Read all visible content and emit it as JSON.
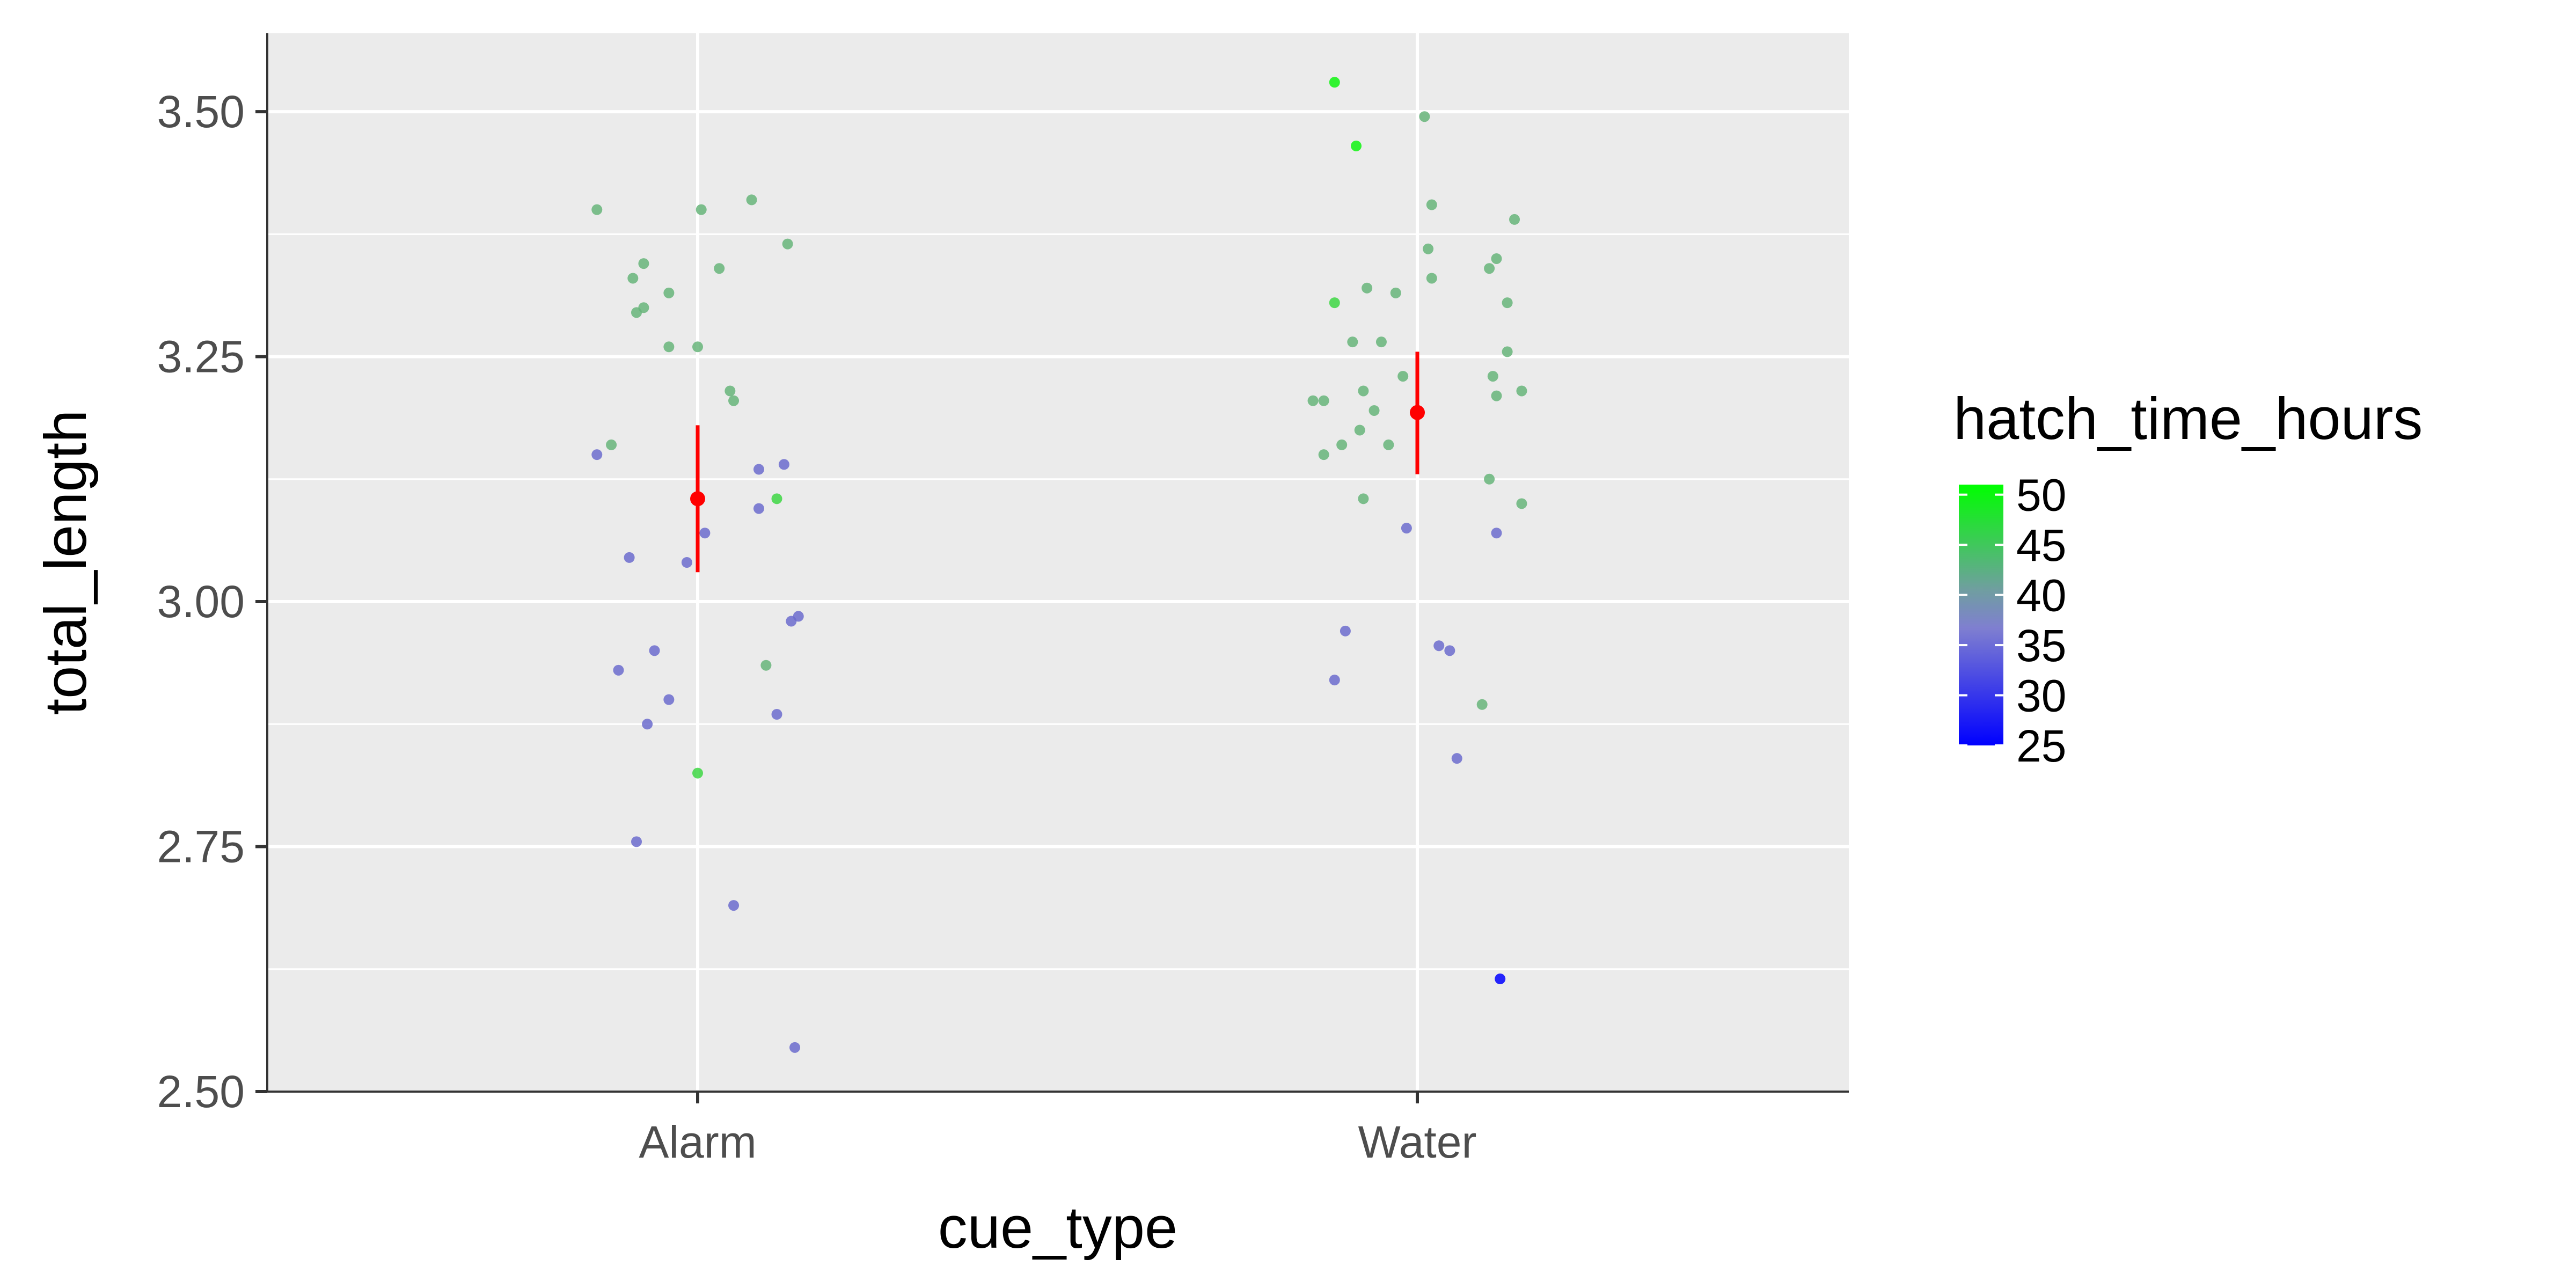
{
  "chart_data": {
    "type": "scatter",
    "title": "",
    "xlabel": "cue_type",
    "ylabel": "total_length",
    "categories": [
      "Alarm",
      "Water"
    ],
    "ylim": [
      2.5,
      3.58
    ],
    "yticks": [
      2.5,
      2.75,
      3.0,
      3.25,
      3.5
    ],
    "ytick_labels": [
      "2.50",
      "2.75",
      "3.00",
      "3.25",
      "3.50"
    ],
    "grid": true,
    "background": "#ebebeb",
    "legend": {
      "title": "hatch_time_hours",
      "position": "right",
      "type": "colorbar",
      "min": 25,
      "max": 51,
      "ticks": [
        25,
        30,
        35,
        40,
        45,
        50
      ],
      "tick_labels": [
        "25",
        "30",
        "35",
        "40",
        "45",
        "50"
      ],
      "low_color": "#0000ff",
      "high_color": "#00ff00"
    },
    "summary_color": "#ff0000",
    "summary": [
      {
        "category": "Alarm",
        "mean": 3.105,
        "lower": 3.03,
        "upper": 3.18
      },
      {
        "category": "Water",
        "mean": 3.193,
        "lower": 3.13,
        "upper": 3.255
      }
    ],
    "points": [
      {
        "category": "Alarm",
        "x_jitter": -0.28,
        "y": 3.4,
        "hatch_time_hours": 43
      },
      {
        "category": "Alarm",
        "x_jitter": -0.28,
        "y": 3.15,
        "hatch_time_hours": 32
      },
      {
        "category": "Alarm",
        "x_jitter": -0.24,
        "y": 3.16,
        "hatch_time_hours": 43
      },
      {
        "category": "Alarm",
        "x_jitter": -0.19,
        "y": 3.045,
        "hatch_time_hours": 32
      },
      {
        "category": "Alarm",
        "x_jitter": -0.18,
        "y": 3.33,
        "hatch_time_hours": 43
      },
      {
        "category": "Alarm",
        "x_jitter": -0.22,
        "y": 2.93,
        "hatch_time_hours": 32
      },
      {
        "category": "Alarm",
        "x_jitter": -0.17,
        "y": 3.295,
        "hatch_time_hours": 43
      },
      {
        "category": "Alarm",
        "x_jitter": -0.17,
        "y": 2.755,
        "hatch_time_hours": 32
      },
      {
        "category": "Alarm",
        "x_jitter": -0.15,
        "y": 3.345,
        "hatch_time_hours": 43
      },
      {
        "category": "Alarm",
        "x_jitter": -0.15,
        "y": 3.3,
        "hatch_time_hours": 43
      },
      {
        "category": "Alarm",
        "x_jitter": -0.14,
        "y": 2.875,
        "hatch_time_hours": 32
      },
      {
        "category": "Alarm",
        "x_jitter": -0.12,
        "y": 2.95,
        "hatch_time_hours": 32
      },
      {
        "category": "Alarm",
        "x_jitter": -0.08,
        "y": 3.315,
        "hatch_time_hours": 43
      },
      {
        "category": "Alarm",
        "x_jitter": -0.08,
        "y": 3.26,
        "hatch_time_hours": 43
      },
      {
        "category": "Alarm",
        "x_jitter": -0.08,
        "y": 2.9,
        "hatch_time_hours": 32
      },
      {
        "category": "Alarm",
        "x_jitter": -0.03,
        "y": 3.04,
        "hatch_time_hours": 32
      },
      {
        "category": "Alarm",
        "x_jitter": 0.0,
        "y": 3.26,
        "hatch_time_hours": 43
      },
      {
        "category": "Alarm",
        "x_jitter": 0.0,
        "y": 2.825,
        "hatch_time_hours": 47
      },
      {
        "category": "Alarm",
        "x_jitter": 0.01,
        "y": 3.4,
        "hatch_time_hours": 43
      },
      {
        "category": "Alarm",
        "x_jitter": 0.02,
        "y": 3.07,
        "hatch_time_hours": 32
      },
      {
        "category": "Alarm",
        "x_jitter": 0.06,
        "y": 3.34,
        "hatch_time_hours": 43
      },
      {
        "category": "Alarm",
        "x_jitter": 0.09,
        "y": 3.215,
        "hatch_time_hours": 43
      },
      {
        "category": "Alarm",
        "x_jitter": 0.1,
        "y": 3.205,
        "hatch_time_hours": 43
      },
      {
        "category": "Alarm",
        "x_jitter": 0.1,
        "y": 2.69,
        "hatch_time_hours": 32
      },
      {
        "category": "Alarm",
        "x_jitter": 0.15,
        "y": 3.41,
        "hatch_time_hours": 43
      },
      {
        "category": "Alarm",
        "x_jitter": 0.17,
        "y": 3.135,
        "hatch_time_hours": 32
      },
      {
        "category": "Alarm",
        "x_jitter": 0.17,
        "y": 3.095,
        "hatch_time_hours": 32
      },
      {
        "category": "Alarm",
        "x_jitter": 0.19,
        "y": 2.935,
        "hatch_time_hours": 43
      },
      {
        "category": "Alarm",
        "x_jitter": 0.22,
        "y": 3.105,
        "hatch_time_hours": 47
      },
      {
        "category": "Alarm",
        "x_jitter": 0.22,
        "y": 2.885,
        "hatch_time_hours": 32
      },
      {
        "category": "Alarm",
        "x_jitter": 0.24,
        "y": 3.14,
        "hatch_time_hours": 32
      },
      {
        "category": "Alarm",
        "x_jitter": 0.25,
        "y": 3.365,
        "hatch_time_hours": 43
      },
      {
        "category": "Alarm",
        "x_jitter": 0.26,
        "y": 2.98,
        "hatch_time_hours": 32
      },
      {
        "category": "Alarm",
        "x_jitter": 0.27,
        "y": 2.545,
        "hatch_time_hours": 32
      },
      {
        "category": "Alarm",
        "x_jitter": 0.28,
        "y": 2.985,
        "hatch_time_hours": 32
      },
      {
        "category": "Water",
        "x_jitter": -0.29,
        "y": 3.205,
        "hatch_time_hours": 43
      },
      {
        "category": "Water",
        "x_jitter": -0.26,
        "y": 3.205,
        "hatch_time_hours": 43
      },
      {
        "category": "Water",
        "x_jitter": -0.26,
        "y": 3.15,
        "hatch_time_hours": 43
      },
      {
        "category": "Water",
        "x_jitter": -0.23,
        "y": 3.53,
        "hatch_time_hours": 50
      },
      {
        "category": "Water",
        "x_jitter": -0.23,
        "y": 3.305,
        "hatch_time_hours": 47
      },
      {
        "category": "Water",
        "x_jitter": -0.23,
        "y": 2.92,
        "hatch_time_hours": 32
      },
      {
        "category": "Water",
        "x_jitter": -0.21,
        "y": 3.16,
        "hatch_time_hours": 43
      },
      {
        "category": "Water",
        "x_jitter": -0.2,
        "y": 2.97,
        "hatch_time_hours": 32
      },
      {
        "category": "Water",
        "x_jitter": -0.18,
        "y": 3.265,
        "hatch_time_hours": 43
      },
      {
        "category": "Water",
        "x_jitter": -0.17,
        "y": 3.465,
        "hatch_time_hours": 50
      },
      {
        "category": "Water",
        "x_jitter": -0.16,
        "y": 3.175,
        "hatch_time_hours": 43
      },
      {
        "category": "Water",
        "x_jitter": -0.15,
        "y": 3.215,
        "hatch_time_hours": 43
      },
      {
        "category": "Water",
        "x_jitter": -0.15,
        "y": 3.105,
        "hatch_time_hours": 43
      },
      {
        "category": "Water",
        "x_jitter": -0.14,
        "y": 3.32,
        "hatch_time_hours": 43
      },
      {
        "category": "Water",
        "x_jitter": -0.12,
        "y": 3.195,
        "hatch_time_hours": 43
      },
      {
        "category": "Water",
        "x_jitter": -0.1,
        "y": 3.265,
        "hatch_time_hours": 43
      },
      {
        "category": "Water",
        "x_jitter": -0.08,
        "y": 3.16,
        "hatch_time_hours": 43
      },
      {
        "category": "Water",
        "x_jitter": -0.06,
        "y": 3.315,
        "hatch_time_hours": 43
      },
      {
        "category": "Water",
        "x_jitter": -0.04,
        "y": 3.23,
        "hatch_time_hours": 43
      },
      {
        "category": "Water",
        "x_jitter": -0.03,
        "y": 3.075,
        "hatch_time_hours": 32
      },
      {
        "category": "Water",
        "x_jitter": 0.02,
        "y": 3.495,
        "hatch_time_hours": 43
      },
      {
        "category": "Water",
        "x_jitter": 0.03,
        "y": 3.36,
        "hatch_time_hours": 43
      },
      {
        "category": "Water",
        "x_jitter": 0.04,
        "y": 3.405,
        "hatch_time_hours": 43
      },
      {
        "category": "Water",
        "x_jitter": 0.04,
        "y": 3.33,
        "hatch_time_hours": 43
      },
      {
        "category": "Water",
        "x_jitter": 0.06,
        "y": 2.955,
        "hatch_time_hours": 32
      },
      {
        "category": "Water",
        "x_jitter": 0.09,
        "y": 2.95,
        "hatch_time_hours": 32
      },
      {
        "category": "Water",
        "x_jitter": 0.11,
        "y": 2.84,
        "hatch_time_hours": 32
      },
      {
        "category": "Water",
        "x_jitter": 0.18,
        "y": 2.895,
        "hatch_time_hours": 43
      },
      {
        "category": "Water",
        "x_jitter": 0.2,
        "y": 3.125,
        "hatch_time_hours": 43
      },
      {
        "category": "Water",
        "x_jitter": 0.2,
        "y": 3.34,
        "hatch_time_hours": 43
      },
      {
        "category": "Water",
        "x_jitter": 0.21,
        "y": 3.23,
        "hatch_time_hours": 43
      },
      {
        "category": "Water",
        "x_jitter": 0.22,
        "y": 3.35,
        "hatch_time_hours": 43
      },
      {
        "category": "Water",
        "x_jitter": 0.22,
        "y": 3.21,
        "hatch_time_hours": 43
      },
      {
        "category": "Water",
        "x_jitter": 0.22,
        "y": 3.07,
        "hatch_time_hours": 32
      },
      {
        "category": "Water",
        "x_jitter": 0.23,
        "y": 2.615,
        "hatch_time_hours": 25
      },
      {
        "category": "Water",
        "x_jitter": 0.25,
        "y": 3.305,
        "hatch_time_hours": 43
      },
      {
        "category": "Water",
        "x_jitter": 0.25,
        "y": 3.255,
        "hatch_time_hours": 43
      },
      {
        "category": "Water",
        "x_jitter": 0.27,
        "y": 3.39,
        "hatch_time_hours": 43
      },
      {
        "category": "Water",
        "x_jitter": 0.29,
        "y": 3.215,
        "hatch_time_hours": 43
      },
      {
        "category": "Water",
        "x_jitter": 0.29,
        "y": 3.1,
        "hatch_time_hours": 43
      }
    ]
  }
}
